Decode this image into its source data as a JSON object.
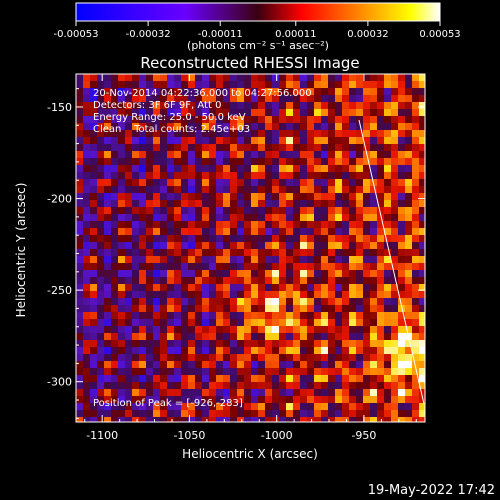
{
  "chart_data": {
    "type": "heatmap",
    "title": "Reconstructed RHESSI Image",
    "xlabel": "Heliocentric X (arcsec)",
    "ylabel": "Heliocentric Y (arcsec)",
    "xlim": [
      -1115,
      -915
    ],
    "ylim": [
      -322,
      -132
    ],
    "x_ticks": [
      -1100,
      -1050,
      -1000,
      -950
    ],
    "y_ticks": [
      -150,
      -200,
      -250,
      -300
    ],
    "colorbar": {
      "range": [
        -0.00053,
        0.00053
      ],
      "tick_values": [
        -0.00053,
        -0.00032,
        -0.00011,
        0.00011,
        0.00032,
        0.00053
      ],
      "tick_labels": [
        "-0.00053",
        "-0.00032",
        "-0.00011",
        "0.00011",
        "0.00032",
        "0.00053"
      ],
      "unit_label": "(photons cm⁻² s⁻¹ asec⁻²)",
      "colors": [
        "#0000ff",
        "#6a00ff",
        "#ff0000",
        "#ff8800",
        "#ffff00",
        "#ffffff"
      ]
    },
    "annotations": [
      "20-Nov-2014 04:22:36.000 to 04:27:56.000",
      "Detectors: 3F 6F 9F, Att 0",
      "Energy Range: 25.0 - 50.0 keV",
      "Clean    Total counts: 2.45e+03"
    ],
    "peak_label": "Position of Peak = [-926,-283]",
    "peak": [
      -926,
      -283
    ],
    "limb_line": true
  },
  "footer": {
    "date": "19-May-2022 17:42"
  }
}
